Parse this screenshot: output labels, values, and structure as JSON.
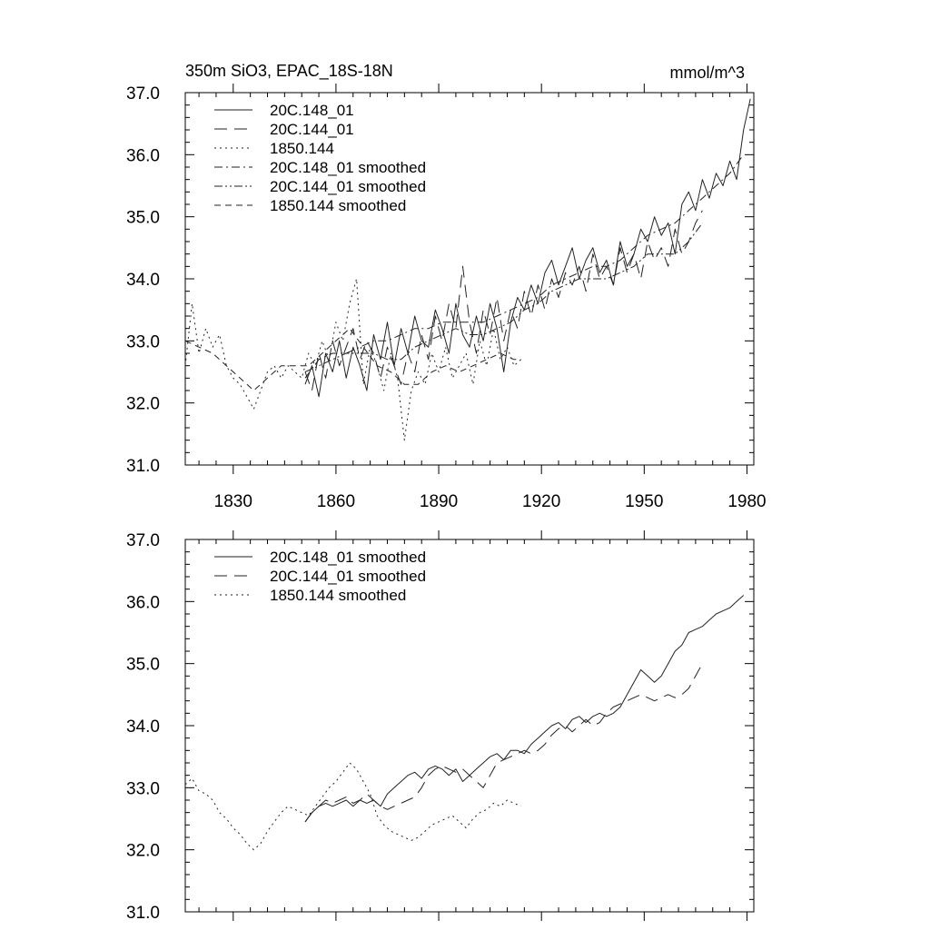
{
  "charts": [
    {
      "title": "350m SiO3, EPAC_18S-18N",
      "units": "mmol/m^3",
      "xlim": [
        1816,
        1982
      ],
      "ylim": [
        31.0,
        37.0
      ],
      "x_ticks": [
        1830,
        1860,
        1890,
        1920,
        1950,
        1980
      ],
      "x_tick_labels": [
        "1830",
        "1860",
        "1890",
        "1920",
        "1950",
        "1980"
      ],
      "y_ticks": [
        31.0,
        32.0,
        33.0,
        34.0,
        35.0,
        36.0,
        37.0
      ],
      "y_tick_labels": [
        "31.0",
        "32.0",
        "33.0",
        "34.0",
        "35.0",
        "36.0",
        "37.0"
      ],
      "legend": [
        {
          "label": "20C.148_01",
          "dash": "solid"
        },
        {
          "label": "20C.144_01",
          "dash": "longdash"
        },
        {
          "label": "1850.144",
          "dash": "dotted"
        },
        {
          "label": "20C.148_01 smoothed",
          "dash": "dashdot"
        },
        {
          "label": "20C.144_01 smoothed",
          "dash": "dashdotdot"
        },
        {
          "label": "1850.144 smoothed",
          "dash": "dashed"
        }
      ]
    },
    {
      "title": "",
      "units": "",
      "xlim": [
        1816,
        1982
      ],
      "ylim": [
        31.0,
        37.0
      ],
      "x_ticks": [
        1830,
        1860,
        1890,
        1920,
        1950,
        1980
      ],
      "x_tick_labels": [],
      "y_ticks": [
        31.0,
        32.0,
        33.0,
        34.0,
        35.0,
        36.0,
        37.0
      ],
      "y_tick_labels": [
        "31.0",
        "32.0",
        "33.0",
        "34.0",
        "35.0",
        "36.0",
        "37.0"
      ],
      "legend": [
        {
          "label": "20C.148_01 smoothed",
          "dash": "solid"
        },
        {
          "label": "20C.144_01 smoothed",
          "dash": "longdash"
        },
        {
          "label": "1850.144 smoothed",
          "dash": "dotted"
        }
      ]
    }
  ],
  "chart_data": [
    {
      "type": "line",
      "title": "350m SiO3, EPAC_18S-18N",
      "units": "mmol/m^3",
      "xlim": [
        1816,
        1982
      ],
      "ylim": [
        31.0,
        37.0
      ],
      "grid": false,
      "legend_position": "top-left",
      "series": [
        {
          "label_ref": 0,
          "style": "solid",
          "x": [
            1851,
            1853,
            1855,
            1857,
            1859,
            1861,
            1863,
            1865,
            1867,
            1869,
            1871,
            1873,
            1875,
            1877,
            1879,
            1881,
            1883,
            1885,
            1887,
            1889,
            1891,
            1893,
            1895,
            1897,
            1899,
            1901,
            1903,
            1905,
            1907,
            1909,
            1911,
            1913,
            1915,
            1917,
            1919,
            1921,
            1923,
            1925,
            1927,
            1929,
            1931,
            1933,
            1935,
            1937,
            1939,
            1941,
            1943,
            1945,
            1947,
            1949,
            1951,
            1953,
            1955,
            1957,
            1959,
            1961,
            1963,
            1965,
            1967,
            1969,
            1971,
            1973,
            1975,
            1977,
            1979,
            1981
          ],
          "y": [
            32.3,
            32.6,
            32.1,
            32.8,
            32.5,
            33.0,
            32.4,
            32.9,
            32.6,
            32.2,
            33.1,
            32.7,
            33.3,
            32.6,
            33.2,
            32.8,
            33.4,
            33.0,
            32.9,
            33.5,
            33.2,
            32.8,
            33.6,
            33.1,
            32.9,
            33.4,
            33.0,
            33.6,
            33.2,
            32.5,
            33.3,
            33.7,
            33.5,
            33.9,
            33.6,
            34.1,
            34.3,
            33.9,
            34.2,
            34.5,
            34.0,
            34.3,
            34.5,
            34.1,
            34.3,
            33.9,
            34.6,
            34.2,
            34.4,
            34.8,
            34.6,
            35.0,
            34.7,
            34.9,
            34.4,
            35.2,
            35.4,
            35.1,
            35.6,
            35.3,
            35.7,
            35.5,
            35.9,
            35.6,
            36.4,
            36.9
          ]
        },
        {
          "label_ref": 1,
          "style": "longdash",
          "x": [
            1851,
            1853,
            1855,
            1857,
            1859,
            1861,
            1863,
            1865,
            1867,
            1869,
            1871,
            1873,
            1875,
            1877,
            1879,
            1881,
            1883,
            1885,
            1887,
            1889,
            1891,
            1893,
            1895,
            1897,
            1899,
            1901,
            1903,
            1905,
            1907,
            1909,
            1911,
            1913,
            1915,
            1917,
            1919,
            1921,
            1923,
            1925,
            1927,
            1929,
            1931,
            1933,
            1935,
            1937,
            1939,
            1941,
            1943,
            1945,
            1947,
            1949,
            1951,
            1953,
            1955,
            1957,
            1959,
            1961,
            1963,
            1965,
            1967
          ],
          "y": [
            32.5,
            32.2,
            32.8,
            32.4,
            33.0,
            32.6,
            32.9,
            33.2,
            32.7,
            33.0,
            32.8,
            32.4,
            32.9,
            32.6,
            32.3,
            32.8,
            32.5,
            33.1,
            32.7,
            33.4,
            33.0,
            33.6,
            33.2,
            34.2,
            33.3,
            32.8,
            33.5,
            33.1,
            33.7,
            33.0,
            33.5,
            33.2,
            33.8,
            33.4,
            33.9,
            33.5,
            34.0,
            33.7,
            34.1,
            33.9,
            34.2,
            33.8,
            34.4,
            34.0,
            34.2,
            33.9,
            34.5,
            34.1,
            34.4,
            34.0,
            34.6,
            34.3,
            34.5,
            34.2,
            34.8,
            34.4,
            34.6,
            34.9,
            35.1
          ]
        },
        {
          "label_ref": 2,
          "style": "dotted",
          "x": [
            1816,
            1818,
            1820,
            1822,
            1824,
            1826,
            1828,
            1830,
            1832,
            1834,
            1836,
            1838,
            1840,
            1842,
            1844,
            1846,
            1848,
            1850,
            1852,
            1854,
            1856,
            1858,
            1860,
            1862,
            1864,
            1866,
            1868,
            1870,
            1872,
            1874,
            1876,
            1878,
            1880,
            1882,
            1884,
            1886,
            1888,
            1890,
            1892,
            1894,
            1896,
            1898,
            1900,
            1902,
            1904,
            1906,
            1908,
            1910,
            1912,
            1914
          ],
          "y": [
            32.6,
            33.6,
            32.8,
            33.2,
            32.9,
            33.1,
            32.6,
            32.4,
            32.3,
            32.1,
            31.9,
            32.2,
            32.5,
            32.6,
            32.4,
            32.6,
            32.5,
            32.4,
            32.8,
            32.6,
            33.0,
            32.7,
            33.3,
            33.0,
            33.6,
            34.0,
            32.3,
            32.9,
            32.6,
            32.2,
            32.8,
            32.4,
            31.4,
            32.2,
            32.5,
            32.3,
            32.8,
            32.5,
            32.9,
            32.4,
            32.6,
            32.8,
            32.3,
            33.0,
            32.6,
            33.2,
            32.7,
            32.9,
            32.6,
            32.7
          ]
        },
        {
          "label_ref": 3,
          "style": "dashdot",
          "x": [
            1851,
            1855,
            1859,
            1863,
            1867,
            1871,
            1875,
            1879,
            1883,
            1887,
            1891,
            1895,
            1899,
            1903,
            1907,
            1911,
            1915,
            1919,
            1923,
            1927,
            1931,
            1935,
            1939,
            1943,
            1947,
            1951,
            1955,
            1959,
            1963,
            1967,
            1971,
            1975,
            1979
          ],
          "y": [
            32.4,
            32.7,
            32.8,
            32.8,
            32.9,
            33.0,
            33.0,
            33.1,
            33.2,
            33.2,
            33.3,
            33.3,
            33.3,
            33.3,
            33.4,
            33.5,
            33.6,
            33.7,
            33.9,
            34.0,
            34.1,
            34.2,
            34.2,
            34.3,
            34.5,
            34.7,
            34.8,
            34.9,
            35.1,
            35.3,
            35.5,
            35.7,
            36.0
          ]
        },
        {
          "label_ref": 4,
          "style": "dashdotdot",
          "x": [
            1851,
            1855,
            1859,
            1863,
            1867,
            1871,
            1875,
            1879,
            1883,
            1887,
            1891,
            1895,
            1899,
            1903,
            1907,
            1911,
            1915,
            1919,
            1923,
            1927,
            1931,
            1935,
            1939,
            1943,
            1947,
            1951,
            1955,
            1959,
            1963,
            1967
          ],
          "y": [
            32.5,
            32.6,
            32.7,
            32.8,
            32.8,
            32.8,
            32.7,
            32.7,
            32.9,
            33.0,
            33.1,
            33.2,
            33.1,
            33.1,
            33.2,
            33.3,
            33.5,
            33.6,
            33.8,
            33.9,
            34.0,
            34.0,
            34.0,
            34.1,
            34.2,
            34.4,
            34.4,
            34.4,
            34.6,
            34.9
          ]
        },
        {
          "label_ref": 5,
          "style": "dashed",
          "x": [
            1816,
            1820,
            1824,
            1828,
            1832,
            1836,
            1840,
            1844,
            1848,
            1852,
            1856,
            1860,
            1864,
            1868,
            1872,
            1876,
            1880,
            1884,
            1888,
            1892,
            1896,
            1900,
            1904,
            1908,
            1912,
            1914
          ],
          "y": [
            33.0,
            32.9,
            32.8,
            32.6,
            32.4,
            32.2,
            32.4,
            32.6,
            32.6,
            32.6,
            32.8,
            33.0,
            33.2,
            32.9,
            32.6,
            32.5,
            32.3,
            32.3,
            32.5,
            32.6,
            32.5,
            32.6,
            32.7,
            32.8,
            32.7,
            32.7
          ]
        }
      ]
    },
    {
      "type": "line",
      "title": "",
      "xlim": [
        1816,
        1982
      ],
      "ylim": [
        31.0,
        37.0
      ],
      "grid": false,
      "legend_position": "top-left",
      "series": [
        {
          "label_ref": 0,
          "style": "solid",
          "x": [
            1851,
            1853,
            1855,
            1857,
            1859,
            1861,
            1863,
            1865,
            1867,
            1869,
            1871,
            1873,
            1875,
            1877,
            1879,
            1881,
            1883,
            1885,
            1887,
            1889,
            1891,
            1893,
            1895,
            1897,
            1899,
            1901,
            1903,
            1905,
            1907,
            1909,
            1911,
            1913,
            1915,
            1917,
            1919,
            1921,
            1923,
            1925,
            1927,
            1929,
            1931,
            1933,
            1935,
            1937,
            1939,
            1941,
            1943,
            1945,
            1947,
            1949,
            1951,
            1953,
            1955,
            1957,
            1959,
            1961,
            1963,
            1965,
            1967,
            1969,
            1971,
            1973,
            1975,
            1977,
            1979
          ],
          "y": [
            32.45,
            32.6,
            32.7,
            32.75,
            32.7,
            32.75,
            32.8,
            32.7,
            32.8,
            32.75,
            32.8,
            32.7,
            32.9,
            33.0,
            33.1,
            33.2,
            33.25,
            33.15,
            33.3,
            33.35,
            33.3,
            33.2,
            33.3,
            33.1,
            33.2,
            33.3,
            33.4,
            33.5,
            33.55,
            33.45,
            33.6,
            33.6,
            33.55,
            33.7,
            33.8,
            33.9,
            34.0,
            34.05,
            33.95,
            34.1,
            34.15,
            34.05,
            34.15,
            34.2,
            34.15,
            34.2,
            34.3,
            34.5,
            34.7,
            34.9,
            34.8,
            34.7,
            34.8,
            35.0,
            35.2,
            35.3,
            35.5,
            35.55,
            35.6,
            35.7,
            35.8,
            35.85,
            35.9,
            36.0,
            36.1
          ]
        },
        {
          "label_ref": 1,
          "style": "longdash",
          "x": [
            1851,
            1853,
            1855,
            1857,
            1859,
            1861,
            1863,
            1865,
            1867,
            1869,
            1871,
            1873,
            1875,
            1877,
            1879,
            1881,
            1883,
            1885,
            1887,
            1889,
            1891,
            1893,
            1895,
            1897,
            1899,
            1901,
            1903,
            1905,
            1907,
            1909,
            1911,
            1913,
            1915,
            1917,
            1919,
            1921,
            1923,
            1925,
            1927,
            1929,
            1931,
            1933,
            1935,
            1937,
            1939,
            1941,
            1943,
            1945,
            1947,
            1949,
            1951,
            1953,
            1955,
            1957,
            1959,
            1961,
            1963,
            1965,
            1967
          ],
          "y": [
            32.45,
            32.6,
            32.7,
            32.8,
            32.75,
            32.8,
            32.85,
            32.75,
            32.8,
            32.9,
            32.8,
            32.7,
            32.65,
            32.7,
            32.75,
            32.8,
            32.85,
            33.0,
            33.2,
            33.3,
            33.35,
            33.3,
            33.25,
            33.3,
            33.2,
            33.1,
            33.0,
            33.2,
            33.4,
            33.45,
            33.5,
            33.55,
            33.6,
            33.55,
            33.6,
            33.7,
            33.85,
            33.95,
            34.0,
            33.9,
            34.0,
            34.1,
            34.0,
            34.05,
            34.2,
            34.3,
            34.35,
            34.4,
            34.45,
            34.5,
            34.45,
            34.4,
            34.45,
            34.5,
            34.45,
            34.5,
            34.6,
            34.8,
            35.0
          ]
        },
        {
          "label_ref": 2,
          "style": "dotted",
          "x": [
            1816,
            1818,
            1820,
            1822,
            1824,
            1826,
            1828,
            1830,
            1832,
            1834,
            1836,
            1838,
            1840,
            1842,
            1844,
            1846,
            1848,
            1850,
            1852,
            1854,
            1856,
            1858,
            1860,
            1862,
            1864,
            1866,
            1868,
            1870,
            1872,
            1874,
            1876,
            1878,
            1880,
            1882,
            1884,
            1886,
            1888,
            1890,
            1892,
            1894,
            1896,
            1898,
            1900,
            1902,
            1904,
            1906,
            1908,
            1910,
            1912,
            1914
          ],
          "y": [
            33.05,
            33.15,
            32.95,
            32.9,
            32.8,
            32.6,
            32.5,
            32.35,
            32.25,
            32.1,
            32.0,
            32.1,
            32.3,
            32.45,
            32.6,
            32.7,
            32.65,
            32.6,
            32.55,
            32.7,
            32.85,
            33.0,
            33.1,
            33.25,
            33.4,
            33.3,
            33.1,
            32.9,
            32.55,
            32.4,
            32.3,
            32.25,
            32.2,
            32.15,
            32.2,
            32.3,
            32.4,
            32.45,
            32.5,
            32.55,
            32.45,
            32.35,
            32.5,
            32.6,
            32.65,
            32.75,
            32.7,
            32.8,
            32.75,
            32.7
          ]
        }
      ]
    }
  ]
}
